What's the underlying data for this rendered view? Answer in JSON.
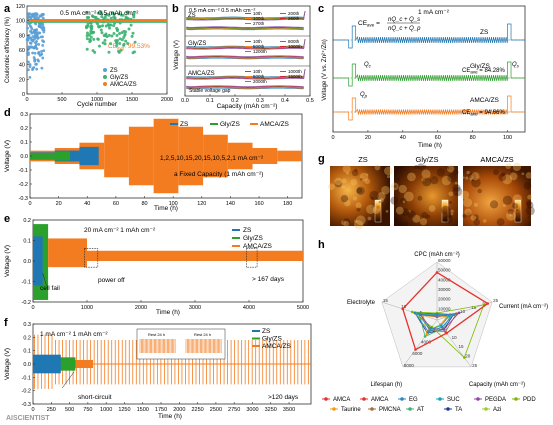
{
  "watermark": "AISCIENTIST",
  "chart_data": [
    {
      "id": "a",
      "type": "scatter",
      "panel": "a",
      "xlabel": "Cycle number",
      "ylabel": "Coulombic efficiency (%)",
      "xlim": [
        0,
        2000
      ],
      "ylim": [
        0,
        120
      ],
      "xticks": [
        0,
        500,
        1000,
        1500,
        2000
      ],
      "yticks": [
        0,
        20,
        40,
        60,
        80,
        100,
        120
      ],
      "annotation": "0.5 mA cm⁻²  0.5 mAh cm⁻²",
      "ce_label": "CE",
      "ce_sub": "avg",
      "ce_value": ": 99.53%",
      "legend": [
        "ZS",
        "Gly/ZS",
        "AMCA/ZS"
      ],
      "colors": [
        "#5a9fd6",
        "#3cb371",
        "#f47c20"
      ],
      "series": [
        {
          "name": "ZS",
          "x_range": [
            0,
            250
          ],
          "y_range": [
            20,
            110
          ]
        },
        {
          "name": "Gly/ZS",
          "x_range": [
            850,
            1550
          ],
          "y_range": [
            55,
            112
          ]
        },
        {
          "name": "AMCA/ZS",
          "x_range": [
            0,
            2000
          ],
          "y_value": 99.5
        }
      ]
    },
    {
      "id": "b",
      "type": "line",
      "panel": "b",
      "xlabel": "Capacity (mAh cm⁻²)",
      "ylabel": "Voltage (V)",
      "xlim": [
        0,
        0.5
      ],
      "xticks": [
        0.0,
        0.1,
        0.2,
        0.3,
        0.4,
        0.5
      ],
      "annotation": "0.5 mA cm⁻² 0.5 mAh cm⁻²",
      "subplots": [
        {
          "label": "ZS",
          "legend": [
            "10th",
            "100th",
            "200th",
            "260th",
            "270th"
          ],
          "colors": [
            "#1f77b4",
            "#ff7f0e",
            "#2ca02c",
            "#d62728",
            "#9467bd"
          ]
        },
        {
          "label": "Gly/ZS",
          "legend": [
            "10th",
            "500th",
            "800th",
            "1000th",
            "1200th"
          ],
          "colors": [
            "#1f77b4",
            "#ff7f0e",
            "#2ca02c",
            "#d62728",
            "#9467bd"
          ]
        },
        {
          "label": "AMCA/ZS",
          "legend": [
            "10th",
            "500th",
            "1000th",
            "1500th",
            "2000th"
          ],
          "colors": [
            "#1f77b4",
            "#ff7f0e",
            "#2ca02c",
            "#d62728",
            "#9467bd"
          ],
          "note": "Stable voltage gap"
        }
      ]
    },
    {
      "id": "c",
      "type": "line",
      "panel": "c",
      "xlabel": "Time (h)",
      "ylabel": "Voltage (V vs. Zn²⁺/Zn)",
      "xlim": [
        0,
        110
      ],
      "xticks": [
        0,
        20,
        40,
        60,
        80,
        100
      ],
      "annotation": "1 mA cm⁻²",
      "formula": {
        "lhs": "CE",
        "lhs_sub": "ave",
        "num": "nQ_c + Q_s",
        "den": "nQ_c + Q_p"
      },
      "subplots": [
        {
          "label": "ZS",
          "color": "#1f77b4"
        },
        {
          "label": "Gly/ZS",
          "color": "#2ca02c",
          "ce": "CE",
          "ce_sub": "ave",
          "ce_value": "= 84.28%"
        },
        {
          "label": "AMCA/ZS",
          "color": "#f47c20",
          "ce": "CE",
          "ce_sub": "ave",
          "ce_value": "= 94.66%"
        }
      ],
      "labels": [
        "Q",
        "Q",
        "Q"
      ],
      "label_subs": [
        "c",
        "p",
        "s"
      ]
    },
    {
      "id": "d",
      "type": "line",
      "panel": "d",
      "xlabel": "Time (h)",
      "ylabel": "Voltage (V)",
      "xlim": [
        0,
        190
      ],
      "ylim": [
        -0.3,
        0.3
      ],
      "xticks": [
        0,
        20,
        40,
        60,
        80,
        100,
        120,
        140,
        160,
        180
      ],
      "yticks": [
        -0.3,
        -0.2,
        -0.1,
        0.0,
        0.1,
        0.2,
        0.3
      ],
      "legend": [
        "ZS",
        "Gly/ZS",
        "AMCA/ZS"
      ],
      "colors": [
        "#1f77b4",
        "#2ca02c",
        "#f47c20"
      ],
      "annotation1": "1,2,5,10,15,20,15,10,5,2,1 mA cm⁻²",
      "annotation2": "a Fixed Capacity (1 mAh cm⁻²)",
      "current_steps": [
        1,
        2,
        5,
        10,
        15,
        20,
        15,
        10,
        5,
        2,
        1
      ]
    },
    {
      "id": "e",
      "type": "line",
      "panel": "e",
      "xlabel": "Time (h)",
      "ylabel": "Voltage (V)",
      "xlim": [
        0,
        5000
      ],
      "ylim": [
        -0.2,
        0.2
      ],
      "xticks": [
        0,
        1000,
        2000,
        3000,
        4000,
        5000
      ],
      "yticks": [
        -0.2,
        -0.1,
        0.0,
        0.1,
        0.2
      ],
      "legend": [
        "ZS",
        "Gly/ZS",
        "AMCA/ZS"
      ],
      "colors": [
        "#1f77b4",
        "#2ca02c",
        "#f47c20"
      ],
      "annotation": "20 mA cm⁻²  1 mAh cm⁻²",
      "notes": [
        "cell fail",
        "power off",
        "> 167 days"
      ]
    },
    {
      "id": "f",
      "type": "line",
      "panel": "f",
      "xlabel": "Time (h)",
      "ylabel": "Voltage (V)",
      "xlim": [
        0,
        3800
      ],
      "ylim": [
        -0.3,
        0.3
      ],
      "xticks": [
        0,
        250,
        500,
        750,
        1000,
        1250,
        1500,
        1750,
        2000,
        2250,
        2500,
        2750,
        3000,
        3250,
        3500
      ],
      "yticks": [
        -0.3,
        -0.2,
        -0.1,
        0.0,
        0.1,
        0.2,
        0.3
      ],
      "legend": [
        "ZS",
        "Gly/ZS",
        "AMCA/ZS"
      ],
      "colors": [
        "#1f77b4",
        "#2ca02c",
        "#f47c20"
      ],
      "annotation": "1 mA cm⁻²  1 mAh cm⁻²",
      "notes": [
        "short-circuit",
        ">120 days"
      ],
      "inset_labels": [
        "Rest 24 h",
        "Rest 24 h"
      ]
    },
    {
      "id": "h",
      "type": "radar",
      "panel": "h",
      "axes": [
        {
          "name": "CPC (mAh cm⁻²)",
          "ticks": [
            10000,
            20000,
            30000,
            40000,
            50000,
            60000
          ]
        },
        {
          "name": "Current (mA cm⁻²)",
          "ticks": [
            5,
            10,
            15,
            20,
            25
          ]
        },
        {
          "name": "Capacity (mAh cm⁻²)",
          "ticks": [
            5,
            10,
            15,
            20,
            25
          ]
        },
        {
          "name": "Lifespan (h)",
          "ticks": [
            2000,
            4000,
            6000,
            8000
          ]
        },
        {
          "name": "Electrolyte",
          "ticks": [
            5,
            10,
            15
          ]
        }
      ],
      "legend": [
        "AMCA",
        "AMCA",
        "EG",
        "SUC",
        "PEGDA",
        "PDD",
        "Taurine",
        "PMCNA",
        "AT",
        "TA",
        "Azi"
      ],
      "colors": [
        "#e5322d",
        "#e5322d",
        "#2e86c1",
        "#17a2b8",
        "#8e44ad",
        "#7fb800",
        "#f39c12",
        "#a66e3a",
        "#3cb371",
        "#1f3a93",
        "#9acd32"
      ],
      "polygons": [
        {
          "name": "AMCA",
          "values": [
            0.82,
            0.92,
            0.28,
            0.63,
            0.62
          ]
        },
        {
          "name": "EG",
          "values": [
            0.1,
            0.3,
            0.15,
            0.25,
            0.4
          ]
        },
        {
          "name": "SUC",
          "values": [
            0.08,
            0.22,
            0.12,
            0.2,
            0.35
          ]
        },
        {
          "name": "PEGDA",
          "values": [
            0.06,
            0.4,
            0.2,
            0.18,
            0.3
          ]
        },
        {
          "name": "PDD",
          "values": [
            0.12,
            0.85,
            0.8,
            0.15,
            0.45
          ]
        },
        {
          "name": "Taurine",
          "values": [
            0.05,
            0.2,
            0.1,
            0.3,
            0.25
          ]
        },
        {
          "name": "PMCNA",
          "values": [
            0.07,
            0.35,
            0.25,
            0.22,
            0.3
          ]
        },
        {
          "name": "AT",
          "values": [
            0.09,
            0.25,
            0.18,
            0.35,
            0.32
          ]
        },
        {
          "name": "TA",
          "values": [
            0.11,
            0.3,
            0.2,
            0.28,
            0.4
          ]
        },
        {
          "name": "Azi",
          "values": [
            0.06,
            0.18,
            0.1,
            0.2,
            0.28
          ]
        }
      ]
    }
  ],
  "panel_g": {
    "titles": [
      "ZS",
      "Gly/ZS",
      "AMCA/ZS"
    ]
  }
}
